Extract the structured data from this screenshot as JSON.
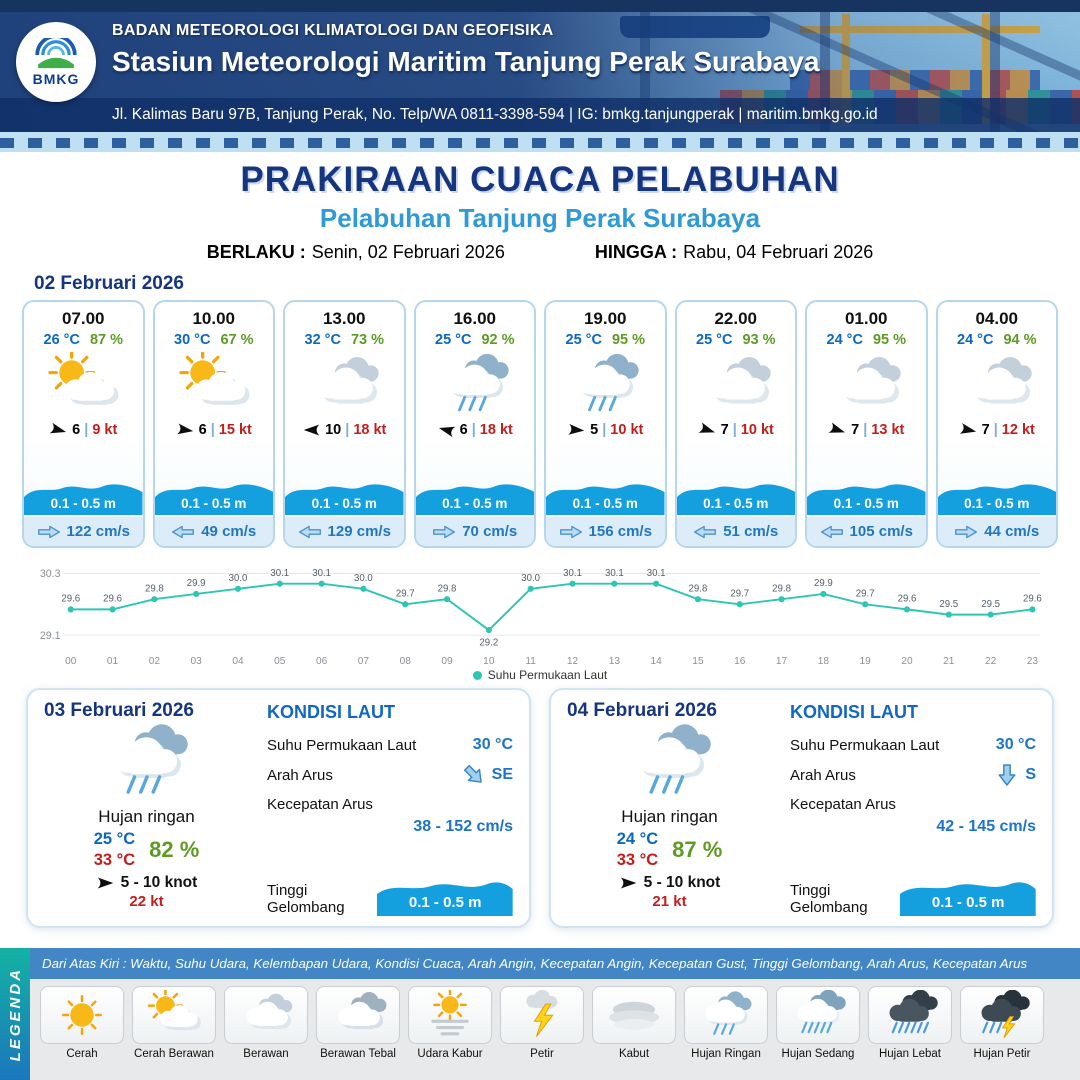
{
  "header": {
    "logo_text": "BMKG",
    "agency": "BADAN METEOROLOGI KLIMATOLOGI DAN GEOFISIKA",
    "station": "Stasiun Meteorologi Maritim Tanjung Perak Surabaya",
    "address": "Jl. Kalimas Baru 97B, Tanjung Perak, No. Telp/WA 0811-3398-594 | IG: bmkg.tanjungperak | maritim.bmkg.go.id"
  },
  "title": {
    "main": "PRAKIRAAN CUACA PELABUHAN",
    "subtitle": "Pelabuhan Tanjung Perak Surabaya",
    "valid_label": "BERLAKU :",
    "valid_value": "Senin, 02 Februari 2026",
    "until_label": "HINGGA :",
    "until_value": "Rabu, 04 Februari 2026"
  },
  "forecast_date": "02 Februari 2026",
  "forecast_cards": [
    {
      "time": "07.00",
      "temp": "26 °C",
      "humidity": "87 %",
      "icon": "cerah-berawan",
      "wind_speed": "6",
      "gust": "9 kt",
      "wind_deg": 15,
      "wave": "0.1 - 0.5 m",
      "current": "122 cm/s",
      "current_dir": "right"
    },
    {
      "time": "10.00",
      "temp": "30 °C",
      "humidity": "67 %",
      "icon": "cerah-berawan",
      "wind_speed": "6",
      "gust": "15 kt",
      "wind_deg": 8,
      "wave": "0.1 - 0.5 m",
      "current": "49 cm/s",
      "current_dir": "left"
    },
    {
      "time": "13.00",
      "temp": "32 °C",
      "humidity": "73 %",
      "icon": "berawan",
      "wind_speed": "10",
      "gust": "18 kt",
      "wind_deg": 180,
      "wave": "0.1 - 0.5 m",
      "current": "129 cm/s",
      "current_dir": "left"
    },
    {
      "time": "16.00",
      "temp": "25 °C",
      "humidity": "92 %",
      "icon": "hujan-ringan",
      "wind_speed": "6",
      "gust": "18 kt",
      "wind_deg": 195,
      "wave": "0.1 - 0.5 m",
      "current": "70 cm/s",
      "current_dir": "right"
    },
    {
      "time": "19.00",
      "temp": "25 °C",
      "humidity": "95 %",
      "icon": "hujan-ringan",
      "wind_speed": "5",
      "gust": "10 kt",
      "wind_deg": 5,
      "wave": "0.1 - 0.5 m",
      "current": "156 cm/s",
      "current_dir": "right"
    },
    {
      "time": "22.00",
      "temp": "25 °C",
      "humidity": "93 %",
      "icon": "berawan",
      "wind_speed": "7",
      "gust": "10 kt",
      "wind_deg": 18,
      "wave": "0.1 - 0.5 m",
      "current": "51 cm/s",
      "current_dir": "left"
    },
    {
      "time": "01.00",
      "temp": "24 °C",
      "humidity": "95 %",
      "icon": "berawan",
      "wind_speed": "7",
      "gust": "13 kt",
      "wind_deg": 18,
      "wave": "0.1 - 0.5 m",
      "current": "105 cm/s",
      "current_dir": "left"
    },
    {
      "time": "04.00",
      "temp": "24 °C",
      "humidity": "94 %",
      "icon": "berawan",
      "wind_speed": "7",
      "gust": "12 kt",
      "wind_deg": 12,
      "wave": "0.1 - 0.5 m",
      "current": "44 cm/s",
      "current_dir": "right"
    }
  ],
  "chart_data": {
    "type": "line",
    "series_label": "Suhu Permukaan Laut",
    "x": [
      "00",
      "01",
      "02",
      "03",
      "04",
      "05",
      "06",
      "07",
      "08",
      "09",
      "10",
      "11",
      "12",
      "13",
      "14",
      "15",
      "16",
      "17",
      "18",
      "19",
      "20",
      "21",
      "22",
      "23"
    ],
    "values": [
      29.6,
      29.6,
      29.8,
      29.9,
      30.0,
      30.1,
      30.1,
      30.0,
      29.7,
      29.8,
      29.2,
      30.0,
      30.1,
      30.1,
      30.1,
      29.8,
      29.7,
      29.8,
      29.9,
      29.7,
      29.6,
      29.5,
      29.5,
      29.6
    ],
    "ylim": [
      29.1,
      30.3
    ],
    "line_color": "#2fc5b5",
    "grid": "minimal",
    "legend_position": "bottom"
  },
  "day_cards": [
    {
      "date": "03 Februari 2026",
      "icon": "hujan-ringan",
      "condition": "Hujan ringan",
      "temp_min": "25 °C",
      "temp_max": "33 °C",
      "humidity": "82 %",
      "wind": "5  - 10 knot",
      "gust": "22 kt",
      "sea": {
        "title": "KONDISI LAUT",
        "sst_label": "Suhu Permukaan Laut",
        "sst": "30 °C",
        "current_dir_label": "Arah Arus",
        "current_dir": "SE",
        "dir_deg": -45,
        "current_speed_label": "Kecepatan Arus",
        "current_speed": "38  - 152 cm/s",
        "wave_label": "Tinggi Gelombang",
        "wave": "0.1 - 0.5 m"
      }
    },
    {
      "date": "04 Februari 2026",
      "icon": "hujan-ringan",
      "condition": "Hujan ringan",
      "temp_min": "24 °C",
      "temp_max": "33 °C",
      "humidity": "87 %",
      "wind": "5  - 10 knot",
      "gust": "21 kt",
      "sea": {
        "title": "KONDISI LAUT",
        "sst_label": "Suhu Permukaan Laut",
        "sst": "30 °C",
        "current_dir_label": "Arah Arus",
        "current_dir": "S",
        "dir_deg": 0,
        "current_speed_label": "Kecepatan Arus",
        "current_speed": "42  - 145 cm/s",
        "wave_label": "Tinggi Gelombang",
        "wave": "0.1 - 0.5 m"
      }
    }
  ],
  "legend": {
    "title": "LEGENDA",
    "description": "Dari Atas Kiri : Waktu, Suhu Udara, Kelembapan Udara, Kondisi Cuaca, Arah Angin, Kecepatan Angin, Kecepatan Gust, Tinggi Gelombang, Arah Arus, Kecepatan Arus",
    "items": [
      {
        "label": "Cerah",
        "icon": "cerah"
      },
      {
        "label": "Cerah Berawan",
        "icon": "cerah-berawan"
      },
      {
        "label": "Berawan",
        "icon": "berawan"
      },
      {
        "label": "Berawan Tebal",
        "icon": "berawan-tebal"
      },
      {
        "label": "Udara Kabur",
        "icon": "udara-kabur"
      },
      {
        "label": "Petir",
        "icon": "petir"
      },
      {
        "label": "Kabut",
        "icon": "kabut"
      },
      {
        "label": "Hujan Ringan",
        "icon": "hujan-ringan"
      },
      {
        "label": "Hujan Sedang",
        "icon": "hujan-sedang"
      },
      {
        "label": "Hujan Lebat",
        "icon": "hujan-lebat"
      },
      {
        "label": "Hujan Petir",
        "icon": "hujan-petir"
      }
    ]
  },
  "colors": {
    "navy": "#15357f",
    "subtitle_blue": "#2f9ad4",
    "temp_blue": "#0a67c2",
    "humidity_green": "#5e9b25",
    "gust_red": "#c41d1d",
    "wave_blue": "#14a0df",
    "chart_teal": "#2fc5b5"
  }
}
